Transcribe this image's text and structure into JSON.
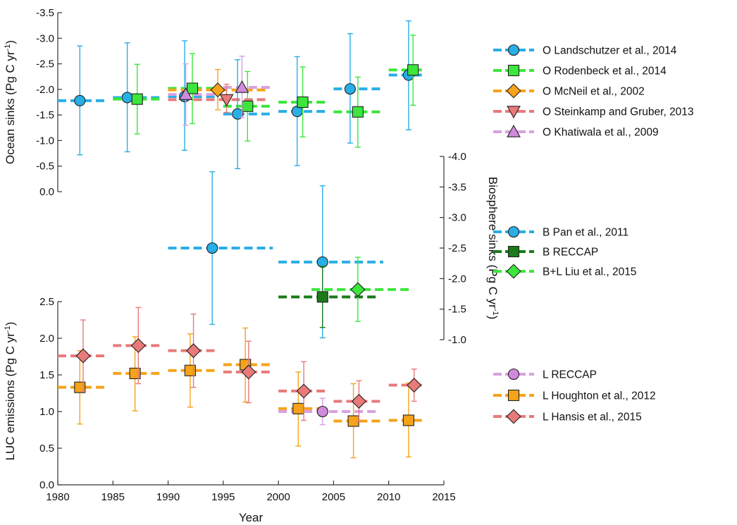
{
  "chart_data": {
    "type": "scatter",
    "x_axis": {
      "label": "Year",
      "range": [
        1980,
        2015
      ],
      "ticks": [
        "1980",
        "1985",
        "1990",
        "1995",
        "2000",
        "2005",
        "2010",
        "2015"
      ]
    },
    "panels": [
      {
        "id": "ocean",
        "ylabel": "Ocean sinks (Pg C yr",
        "ylabel_sup": "-1",
        "ylabel_end": ")",
        "y_range": [
          0,
          -3.5
        ],
        "y_ticks": [
          "0.0",
          "-0.5",
          "-1.0",
          "-1.5",
          "-2.0",
          "-2.5",
          "-3.0",
          "-3.5"
        ],
        "y_tick_values": [
          0,
          -0.5,
          -1.0,
          -1.5,
          -2.0,
          -2.5,
          -3.0,
          -3.5
        ],
        "series": [
          {
            "name": "O Landschutzer et al., 2014",
            "color": "#29aee6",
            "marker": "circle",
            "marker_fill": "#29aee6",
            "points": [
              {
                "x": 1982,
                "y": -1.78,
                "err_lo": -0.72,
                "err_hi": -2.85,
                "xmin": 1980,
                "xmax": 1984.5
              },
              {
                "x": 1986.3,
                "y": -1.84,
                "err_lo": -0.78,
                "err_hi": -2.91,
                "xmin": 1985,
                "xmax": 1989.5
              },
              {
                "x": 1991.5,
                "y": -1.86,
                "err_lo": -0.81,
                "err_hi": -2.95,
                "xmin": 1990,
                "xmax": 1994.5
              },
              {
                "x": 1996.3,
                "y": -1.52,
                "err_lo": -0.45,
                "err_hi": -2.58,
                "xmin": 1995,
                "xmax": 1999.5
              },
              {
                "x": 2001.7,
                "y": -1.57,
                "err_lo": -0.51,
                "err_hi": -2.64,
                "xmin": 2000,
                "xmax": 2004.5
              },
              {
                "x": 2006.5,
                "y": -2.01,
                "err_lo": -0.95,
                "err_hi": -3.09,
                "xmin": 2005,
                "xmax": 2009.5
              },
              {
                "x": 2011.8,
                "y": -2.28,
                "err_lo": -1.21,
                "err_hi": -3.34,
                "xmin": 2010,
                "xmax": 2013
              }
            ]
          },
          {
            "name": "O Rodenbeck et al., 2014",
            "color": "#3ce63c",
            "marker": "square",
            "marker_fill": "#3ce63c",
            "points": [
              {
                "x": 1987.2,
                "y": -1.81,
                "err_lo": -1.13,
                "err_hi": -2.49,
                "xmin": 1985,
                "xmax": 1989.5
              },
              {
                "x": 1992.2,
                "y": -2.02,
                "err_lo": -1.33,
                "err_hi": -2.7,
                "xmin": 1990,
                "xmax": 1994.5
              },
              {
                "x": 1997.2,
                "y": -1.67,
                "err_lo": -0.99,
                "err_hi": -2.35,
                "xmin": 1995,
                "xmax": 1999.5
              },
              {
                "x": 2002.2,
                "y": -1.75,
                "err_lo": -1.07,
                "err_hi": -2.44,
                "xmin": 2000,
                "xmax": 2004.5
              },
              {
                "x": 2007.2,
                "y": -1.56,
                "err_lo": -0.87,
                "err_hi": -2.24,
                "xmin": 2005,
                "xmax": 2009.5
              },
              {
                "x": 2012.2,
                "y": -2.38,
                "err_lo": -1.69,
                "err_hi": -3.06,
                "xmin": 2010,
                "xmax": 2013
              }
            ]
          },
          {
            "name": "O McNeil et al., 2002",
            "color": "#f5a31a",
            "marker": "diamond",
            "marker_fill": "#f5a31a",
            "points": [
              {
                "x": 1994.5,
                "y": -1.99,
                "err_lo": -1.6,
                "err_hi": -2.39,
                "xmin": 1990,
                "xmax": 1999
              }
            ]
          },
          {
            "name": "O Steinkamp and Gruber, 2013",
            "color": "#e87a7a",
            "marker": "triangle-down",
            "marker_fill": "#e87a7a",
            "points": [
              {
                "x": 1995.3,
                "y": -1.8,
                "err_lo": -1.55,
                "err_hi": -2.1,
                "xmin": 1990,
                "xmax": 1999
              }
            ]
          },
          {
            "name": "O Khatiwala et al., 2009",
            "color": "#d8a0e0",
            "marker": "triangle-up",
            "marker_fill": "#d08adc",
            "points": [
              {
                "x": 1991.6,
                "y": -1.9,
                "err_lo": -1.3,
                "err_hi": -2.5,
                "xmin": 1990,
                "xmax": 1994.5
              },
              {
                "x": 1996.7,
                "y": -2.04,
                "err_lo": -1.45,
                "err_hi": -2.65,
                "xmin": 1995,
                "xmax": 1999.5
              }
            ]
          }
        ]
      },
      {
        "id": "biosphere",
        "ylabel": "Biosphere sinks (Pg C yr",
        "ylabel_sup": "-1",
        "ylabel_end": ")",
        "y_range": [
          -1.0,
          -4.0
        ],
        "y_ticks": [
          "-1.0",
          "-1.5",
          "-2.0",
          "-2.5",
          "-3.0",
          "-3.5",
          "-4.0"
        ],
        "y_tick_values": [
          -1.0,
          -1.5,
          -2.0,
          -2.5,
          -3.0,
          -3.5,
          -4.0
        ],
        "series": [
          {
            "name": "B Pan et al., 2011",
            "color": "#29aee6",
            "marker": "circle",
            "marker_fill": "#29aee6",
            "points": [
              {
                "x": 1994,
                "y": -2.5,
                "err_lo": -1.25,
                "err_hi": -3.75,
                "xmin": 1990,
                "xmax": 1999.5
              },
              {
                "x": 2004,
                "y": -2.27,
                "err_lo": -1.03,
                "err_hi": -3.52,
                "xmin": 2000,
                "xmax": 2009.5
              }
            ]
          },
          {
            "name": "B RECCAP",
            "color": "#1a7a1a",
            "marker": "square",
            "marker_fill": "#1a7a1a",
            "points": [
              {
                "x": 2004,
                "y": -1.7,
                "err_lo": -1.2,
                "err_hi": -2.2,
                "xmin": 2000,
                "xmax": 2009
              }
            ]
          },
          {
            "name": "B+L Liu et al., 2015",
            "color": "#3ce63c",
            "marker": "diamond",
            "marker_fill": "#3ce63c",
            "points": [
              {
                "x": 2007.2,
                "y": -1.82,
                "err_lo": -1.3,
                "err_hi": -2.35,
                "xmin": 2003,
                "xmax": 2012
              }
            ]
          }
        ]
      },
      {
        "id": "luc",
        "ylabel": "LUC emissions (Pg C yr",
        "ylabel_sup": "-1",
        "ylabel_end": ")",
        "y_range": [
          0,
          2.5
        ],
        "y_ticks": [
          "0.0",
          "0.5",
          "1.0",
          "1.5",
          "2.0",
          "2.5"
        ],
        "y_tick_values": [
          0,
          0.5,
          1.0,
          1.5,
          2.0,
          2.5
        ],
        "series": [
          {
            "name": "L RECCAP",
            "color": "#d8a0e0",
            "marker": "circle",
            "marker_fill": "#d08adc",
            "points": [
              {
                "x": 2004,
                "y": 1.0,
                "err_lo": 0.82,
                "err_hi": 1.18,
                "xmin": 2000,
                "xmax": 2009
              }
            ]
          },
          {
            "name": "L Houghton et al., 2012",
            "color": "#f5a31a",
            "marker": "square",
            "marker_fill": "#f5a31a",
            "points": [
              {
                "x": 1982,
                "y": 1.33,
                "err_lo": 0.83,
                "err_hi": 1.83,
                "xmin": 1980,
                "xmax": 1984.5
              },
              {
                "x": 1987,
                "y": 1.52,
                "err_lo": 1.01,
                "err_hi": 2.02,
                "xmin": 1985,
                "xmax": 1989.5
              },
              {
                "x": 1992,
                "y": 1.56,
                "err_lo": 1.06,
                "err_hi": 2.06,
                "xmin": 1990,
                "xmax": 1994.5
              },
              {
                "x": 1997,
                "y": 1.64,
                "err_lo": 1.13,
                "err_hi": 2.14,
                "xmin": 1995,
                "xmax": 1999.5
              },
              {
                "x": 2001.8,
                "y": 1.04,
                "err_lo": 0.53,
                "err_hi": 1.54,
                "xmin": 2000,
                "xmax": 2004.5
              },
              {
                "x": 2006.8,
                "y": 0.87,
                "err_lo": 0.37,
                "err_hi": 1.38,
                "xmin": 2005,
                "xmax": 2009.5
              },
              {
                "x": 2011.8,
                "y": 0.88,
                "err_lo": 0.38,
                "err_hi": 1.39,
                "xmin": 2010,
                "xmax": 2013
              }
            ]
          },
          {
            "name": "L Hansis et al., 2015",
            "color": "#e87a7a",
            "marker": "diamond",
            "marker_fill": "#e87a7a",
            "points": [
              {
                "x": 1982.3,
                "y": 1.76,
                "err_lo": 1.27,
                "err_hi": 2.25,
                "xmin": 1980,
                "xmax": 1984.5
              },
              {
                "x": 1987.3,
                "y": 1.9,
                "err_lo": 1.38,
                "err_hi": 2.42,
                "xmin": 1985,
                "xmax": 1989.5
              },
              {
                "x": 1992.3,
                "y": 1.83,
                "err_lo": 1.33,
                "err_hi": 2.33,
                "xmin": 1990,
                "xmax": 1994.5
              },
              {
                "x": 1997.3,
                "y": 1.54,
                "err_lo": 1.12,
                "err_hi": 1.96,
                "xmin": 1995,
                "xmax": 1999.5
              },
              {
                "x": 2002.3,
                "y": 1.28,
                "err_lo": 0.88,
                "err_hi": 1.68,
                "xmin": 2000,
                "xmax": 2004.5
              },
              {
                "x": 2007.3,
                "y": 1.14,
                "err_lo": 0.86,
                "err_hi": 1.42,
                "xmin": 2005,
                "xmax": 2009.5
              },
              {
                "x": 2012.3,
                "y": 1.36,
                "err_lo": 1.14,
                "err_hi": 1.58,
                "xmin": 2010,
                "xmax": 2013
              }
            ]
          }
        ]
      }
    ]
  }
}
